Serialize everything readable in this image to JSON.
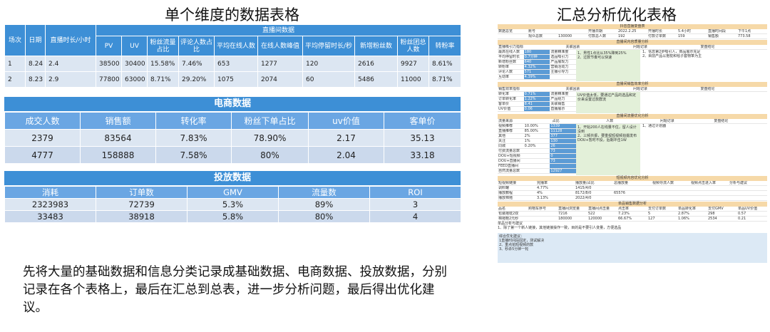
{
  "left_title": "单个维度的数据表格",
  "right_title": "汇总分析优化表格",
  "live": {
    "group_header": "直播间数据",
    "headers": [
      "场次",
      "日期",
      "直播时长/小时",
      "PV",
      "UV",
      "粉丝流量占比",
      "评论人数占比",
      "平均在线人数",
      "在线人数峰值",
      "平均停留时长/秒",
      "新增粉丝数",
      "粉丝团总人数",
      "转粉率"
    ],
    "rows": [
      [
        "1",
        "8.24",
        "2.4",
        "38500",
        "30400",
        "15.58%",
        "7.46%",
        "653",
        "1277",
        "120",
        "2616",
        "9927",
        "8.61%"
      ],
      [
        "2",
        "8.23",
        "2.9",
        "77800",
        "63000",
        "8.71%",
        "29.20%",
        "1075",
        "2074",
        "60",
        "5486",
        "11000",
        "8.71%"
      ]
    ]
  },
  "ecom": {
    "title": "电商数据",
    "headers": [
      "成交人数",
      "销售额",
      "转化率",
      "粉丝下单占比",
      "uv价值",
      "客单价"
    ],
    "rows": [
      [
        "2379",
        "83564",
        "7.83%",
        "78.90%",
        "2.17",
        "35.13"
      ],
      [
        "4777",
        "158888",
        "7.58%",
        "80%",
        "2.04",
        "33.18"
      ]
    ]
  },
  "ads": {
    "title": "投放数据",
    "headers": [
      "消耗",
      "订单数",
      "GMV",
      "流量数",
      "ROI"
    ],
    "rows": [
      [
        "2323983",
        "72739",
        "5.3%",
        "89%",
        "3"
      ],
      [
        "33483",
        "38918",
        "5.8%",
        "80%",
        "4"
      ]
    ]
  },
  "description": "先将大量的基础数据和信息分类记录成基础数据、电商数据、投放数据，分别记录在各个表格上，最后在汇总到总表，进一步分析问题，最后得出优化建议。",
  "sheet": {
    "title": "抖音直播复盘表",
    "basic_rows": [
      [
        "数据总览",
        "账号",
        "",
        "开播日期",
        "2022.2.25",
        "开播时长",
        "5.4小时",
        "直播时间段",
        "下午1点"
      ],
      [
        "",
        "观众总数",
        "130000",
        "付款总人数",
        "192",
        "付款订单数",
        "159",
        "销售额",
        "773.58"
      ]
    ],
    "sec1": "直播间内容质量分析",
    "sec1_head": [
      "直播吸引力指标",
      "关联因素",
      "问题记录",
      "复盘结论"
    ],
    "sec1_rows": [
      [
        "最高在线人数",
        "180",
        "流量精准度"
      ],
      [
        "平均停留时长",
        "0.7分钟",
        "选品吸引力"
      ],
      [
        "新增粉丝数",
        "640",
        "产品展现力"
      ],
      [
        "转粉率",
        "4.32%",
        "营销活动力"
      ],
      [
        "评论人数",
        "571",
        "主播引导力"
      ],
      [
        "互动率",
        "4.39%",
        ""
      ]
    ],
    "sec1_notes": [
      "1、男性1点比从35%降到25%",
      "2、过款节奏可以快速"
    ],
    "sec1_conc": [
      "1、信息第2步吸引人，商品展示充足",
      "2、目前产品以抱枕和毯子套物笨为主"
    ],
    "sec2": "直播间销售效率分析",
    "sec2_head": [
      "销售效率指标",
      "关联因素",
      "问题记录",
      "复盘结论"
    ],
    "sec2_rows": [
      [
        "转化率",
        "0.71%",
        "流量精准度"
      ],
      [
        "订单转化率",
        "1.22%",
        "产品给力"
      ],
      [
        "客单价",
        "8.41",
        "关联销售"
      ],
      [
        "UV价值",
        "0.06",
        "直播展示"
      ]
    ],
    "sec2_notes": [
      "UV价值太低，要通过产品的选品和定价来设置过款群流"
    ],
    "sec3": "直播间流量优化分析",
    "sec3_head": [
      "流量来源",
      "占比",
      "人数",
      "问题记录",
      "复盘结论"
    ],
    "sec3_rows": [
      [
        "视频推荐",
        "10.00%",
        "1339"
      ],
      [
        "直播推荐",
        "85.00%",
        "11128"
      ],
      [
        "其他",
        "2%",
        "377"
      ],
      [
        "关注",
        "1%",
        "130"
      ],
      [
        "同城",
        "0.20%",
        "26"
      ],
      [
        "付费流量总数",
        "",
        "73"
      ],
      [
        "DOU+短视频",
        "",
        "0"
      ],
      [
        "DOU+直播间",
        "",
        "73"
      ],
      [
        "FEED直播间",
        "",
        ""
      ],
      [
        "自然流量总数",
        "",
        "12927"
      ]
    ],
    "sec3_notes": [
      "1、开始200人在线量不住，留人设计没到",
      "2、三频共振，要重视短视频拍摄发布",
      "DOU+暂时不投，后期冲击1W"
    ],
    "sec3_conc": [
      "1、通过计划器"
    ],
    "sec4": "短视频内容优化分析",
    "sec4_head": [
      "短视频链接",
      "完播率",
      "播放量/占比",
      "总播放量",
      "视频导流人数",
      "视频点击进入率",
      "分析与建议"
    ],
    "sec4_rows": [
      [
        "调料罐",
        "4.77%",
        "1415/4/0"
      ],
      [
        "播放教程",
        "4%",
        "8172/8/0"
      ],
      [
        "播放棉拖",
        "3.13%",
        "2022/4/0"
      ]
    ],
    "sec4_total": "65576",
    "sec5": "单品销售数据分析",
    "sec5_head": [
      "品名",
      "购物车序号",
      "直播间浏览量",
      "直播间点击量",
      "点击率",
      "支付订单数",
      "单品转化率",
      "支付GMV",
      "单品UV价值"
    ],
    "sec5_rows": [
      [
        "包装抱枕2双",
        "",
        "7216",
        "522",
        "7.23%",
        "5",
        "2.87%",
        "298",
        "0.57"
      ],
      [
        "棉拖鞋2元秒",
        "",
        "180000",
        "120000",
        "66.67%",
        "127",
        "1.06%",
        "2534",
        "0.21"
      ]
    ],
    "sec5_note_title": "单品分析与建议",
    "sec5_note": "1、除了第一个新人链接，其他链接操作一致，目的是不要引人变量，方便选品",
    "final_title": "综合优化建议：",
    "final": [
      "1直播时间段固定，测试解决",
      "2、重点拍短视频的款",
      "3、秒杀5分钟一轮"
    ]
  }
}
